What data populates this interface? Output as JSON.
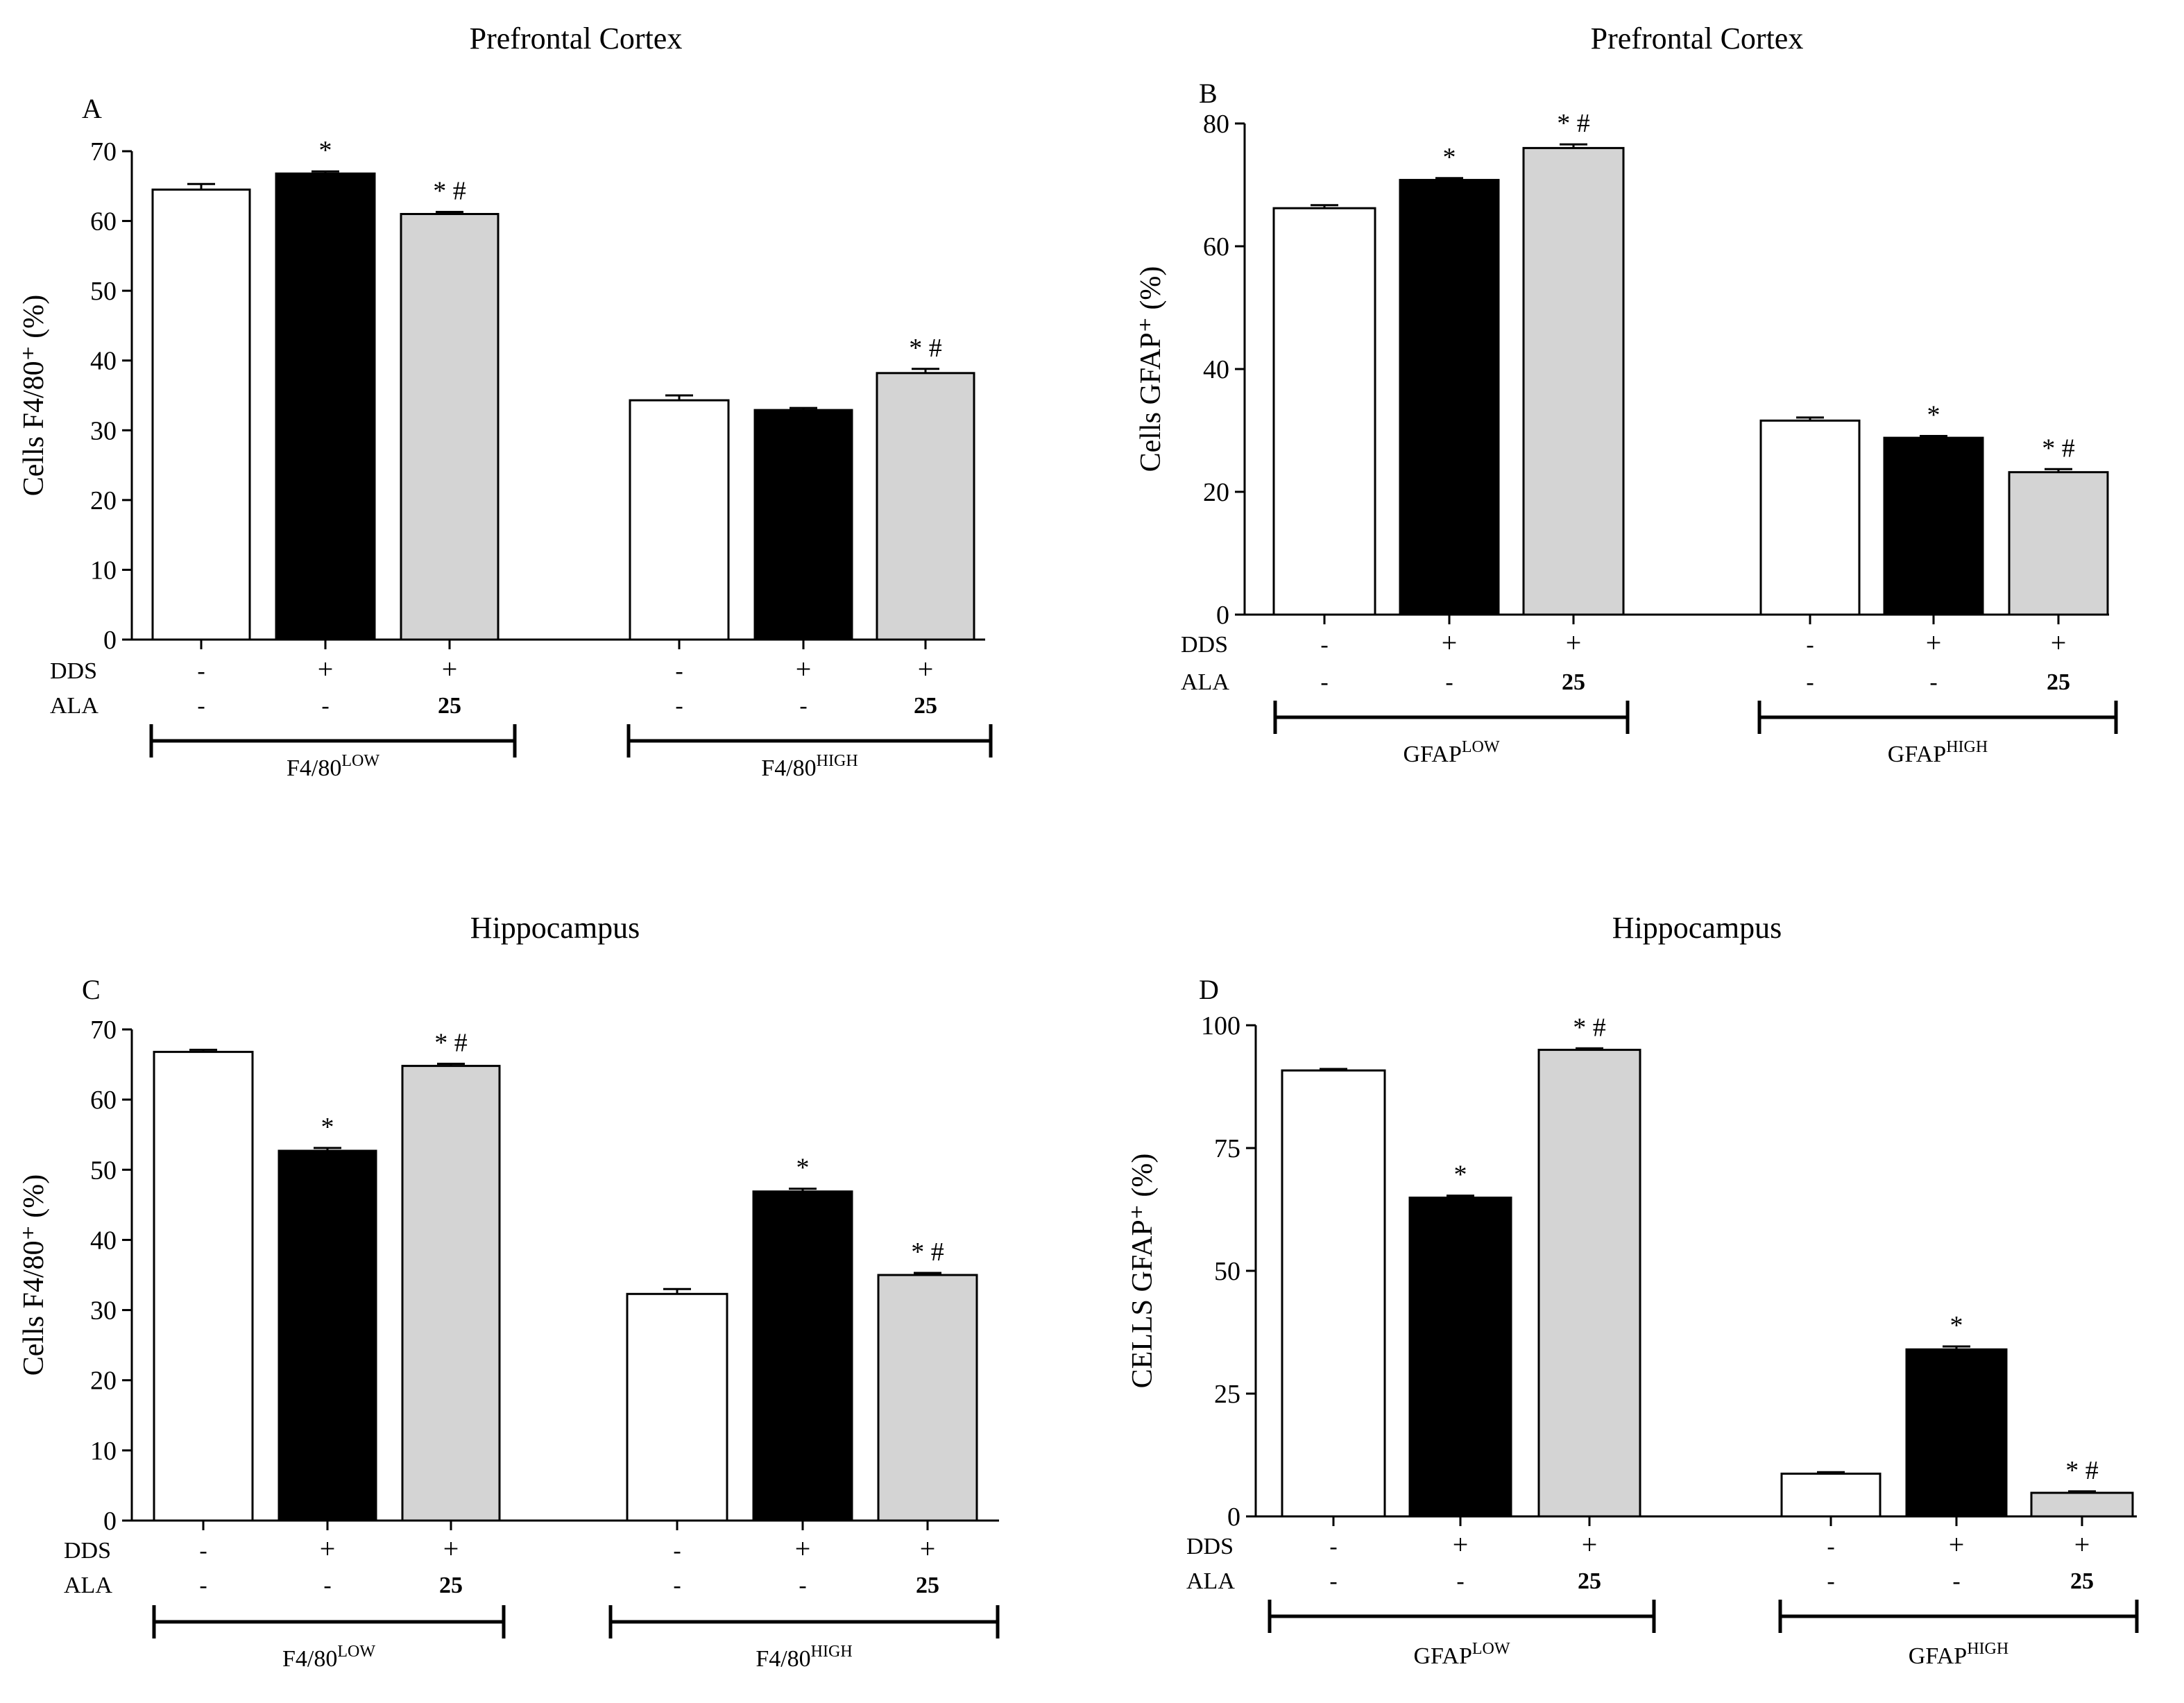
{
  "chart_data": [
    {
      "type": "bar",
      "panel": "A",
      "title": "Prefrontal Cortex",
      "ylabel": "Cells F4/80⁺ (%)",
      "ylim": [
        0,
        70
      ],
      "yticks": [
        "0",
        "10",
        "20",
        "30",
        "40",
        "50",
        "60",
        "70"
      ],
      "row_labels": [
        "DDS",
        "ALA"
      ],
      "groups": [
        {
          "label_main": "F4/80",
          "label_sup": "LOW",
          "bars": [
            {
              "value": 64.5,
              "error": 0.8,
              "fill": "white",
              "sig": "",
              "dds": "-",
              "ala": "-"
            },
            {
              "value": 66.8,
              "error": 0.3,
              "fill": "black",
              "sig": "*",
              "dds": "+",
              "ala": "-"
            },
            {
              "value": 61.0,
              "error": 0.3,
              "fill": "gray",
              "sig": "* #",
              "dds": "+",
              "ala": "25"
            }
          ]
        },
        {
          "label_main": "F4/80",
          "label_sup": "HIGH",
          "bars": [
            {
              "value": 34.3,
              "error": 0.7,
              "fill": "white",
              "sig": "",
              "dds": "-",
              "ala": "-"
            },
            {
              "value": 32.9,
              "error": 0.3,
              "fill": "black",
              "sig": "",
              "dds": "+",
              "ala": "-"
            },
            {
              "value": 38.2,
              "error": 0.6,
              "fill": "gray",
              "sig": "* #",
              "dds": "+",
              "ala": "25"
            }
          ]
        }
      ]
    },
    {
      "type": "bar",
      "panel": "B",
      "title": "Prefrontal Cortex",
      "ylabel": "Cells GFAP⁺ (%)",
      "ylim": [
        0,
        80
      ],
      "yticks": [
        "0",
        "20",
        "40",
        "60",
        "80"
      ],
      "row_labels": [
        "DDS",
        "ALA"
      ],
      "groups": [
        {
          "label_main": "GFAP",
          "label_sup": "LOW",
          "bars": [
            {
              "value": 66.2,
              "error": 0.5,
              "fill": "white",
              "sig": "",
              "dds": "-",
              "ala": "-"
            },
            {
              "value": 70.8,
              "error": 0.3,
              "fill": "black",
              "sig": "*",
              "dds": "+",
              "ala": "-"
            },
            {
              "value": 76.0,
              "error": 0.6,
              "fill": "gray",
              "sig": "* #",
              "dds": "+",
              "ala": "25"
            }
          ]
        },
        {
          "label_main": "GFAP",
          "label_sup": "HIGH",
          "bars": [
            {
              "value": 31.6,
              "error": 0.5,
              "fill": "white",
              "sig": "",
              "dds": "-",
              "ala": "-"
            },
            {
              "value": 28.8,
              "error": 0.3,
              "fill": "black",
              "sig": "*",
              "dds": "+",
              "ala": "-"
            },
            {
              "value": 23.2,
              "error": 0.5,
              "fill": "gray",
              "sig": "* #",
              "dds": "+",
              "ala": "25"
            }
          ]
        }
      ]
    },
    {
      "type": "bar",
      "panel": "C",
      "title": "Hippocampus",
      "ylabel": "Cells F4/80⁺ (%)",
      "ylim": [
        0,
        70
      ],
      "yticks": [
        "0",
        "10",
        "20",
        "30",
        "40",
        "50",
        "60",
        "70"
      ],
      "row_labels": [
        "DDS",
        "ALA"
      ],
      "groups": [
        {
          "label_main": "F4/80",
          "label_sup": "LOW",
          "bars": [
            {
              "value": 66.8,
              "error": 0.3,
              "fill": "white",
              "sig": "",
              "dds": "-",
              "ala": "-"
            },
            {
              "value": 52.7,
              "error": 0.4,
              "fill": "black",
              "sig": "*",
              "dds": "+",
              "ala": "-"
            },
            {
              "value": 64.8,
              "error": 0.3,
              "fill": "gray",
              "sig": "* #",
              "dds": "+",
              "ala": "25"
            }
          ]
        },
        {
          "label_main": "F4/80",
          "label_sup": "HIGH",
          "bars": [
            {
              "value": 32.3,
              "error": 0.7,
              "fill": "white",
              "sig": "",
              "dds": "-",
              "ala": "-"
            },
            {
              "value": 46.9,
              "error": 0.4,
              "fill": "black",
              "sig": "*",
              "dds": "+",
              "ala": "-"
            },
            {
              "value": 35.0,
              "error": 0.3,
              "fill": "gray",
              "sig": "* #",
              "dds": "+",
              "ala": "25"
            }
          ]
        }
      ]
    },
    {
      "type": "bar",
      "panel": "D",
      "title": "Hippocampus",
      "ylabel": "CELLS GFAP⁺ (%)",
      "ylim": [
        0,
        100
      ],
      "yticks": [
        "0",
        "25",
        "50",
        "75",
        "100"
      ],
      "row_labels": [
        "DDS",
        "ALA"
      ],
      "groups": [
        {
          "label_main": "GFAP",
          "label_sup": "LOW",
          "bars": [
            {
              "value": 90.8,
              "error": 0.3,
              "fill": "white",
              "sig": "",
              "dds": "-",
              "ala": "-"
            },
            {
              "value": 64.9,
              "error": 0.4,
              "fill": "black",
              "sig": "*",
              "dds": "+",
              "ala": "-"
            },
            {
              "value": 95.0,
              "error": 0.3,
              "fill": "gray",
              "sig": "* #",
              "dds": "+",
              "ala": "25"
            }
          ]
        },
        {
          "label_main": "GFAP",
          "label_sup": "HIGH",
          "bars": [
            {
              "value": 8.7,
              "error": 0.3,
              "fill": "white",
              "sig": "",
              "dds": "-",
              "ala": "-"
            },
            {
              "value": 34.0,
              "error": 0.6,
              "fill": "black",
              "sig": "*",
              "dds": "+",
              "ala": "-"
            },
            {
              "value": 4.8,
              "error": 0.3,
              "fill": "gray",
              "sig": "* #",
              "dds": "+",
              "ala": "25"
            }
          ]
        }
      ]
    }
  ],
  "colors": {
    "white": "#ffffff",
    "black": "#000000",
    "gray": "#d4d4d4"
  }
}
